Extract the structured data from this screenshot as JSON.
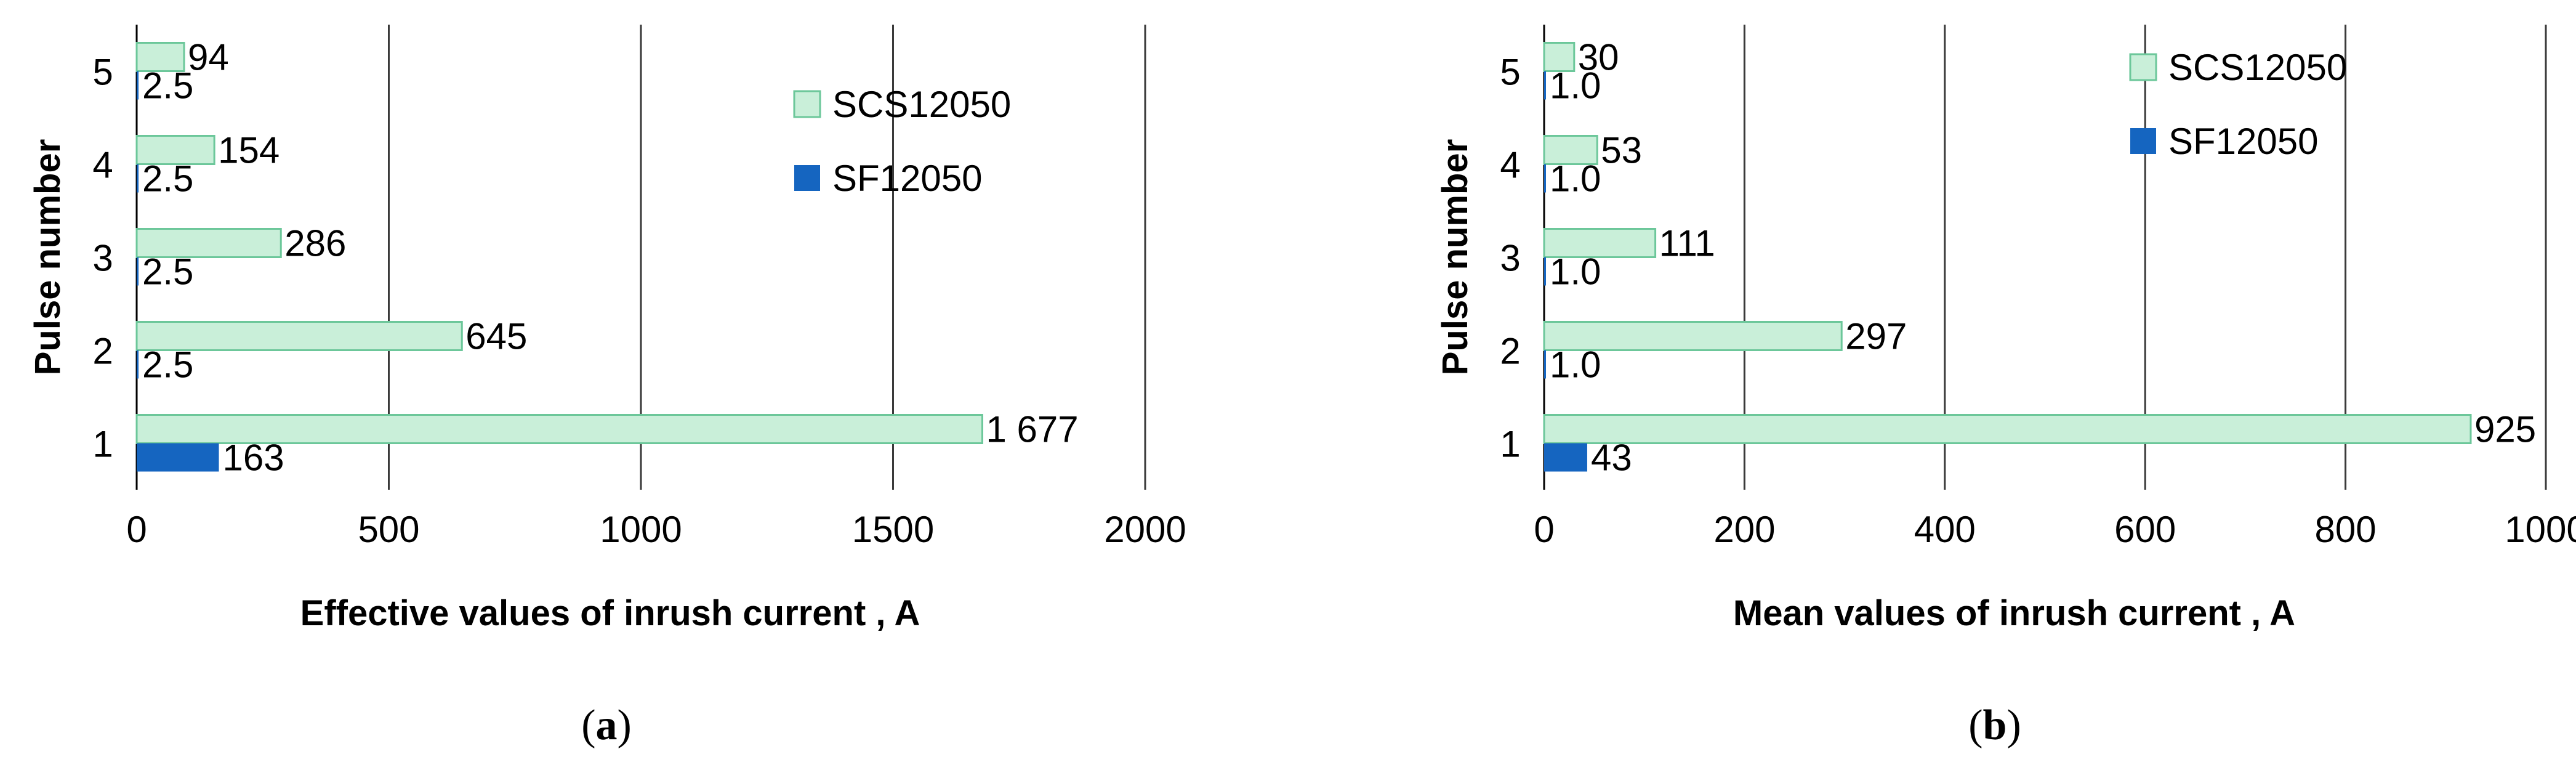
{
  "chart_data": [
    {
      "type": "bar",
      "orientation": "horizontal",
      "panel_label": "a",
      "categories": [
        "1",
        "2",
        "3",
        "4",
        "5"
      ],
      "series": [
        {
          "name": "SCS12050",
          "color": "#c9efd9",
          "edge": "#6cc79a",
          "values": [
            1677,
            645,
            286,
            154,
            94
          ],
          "labels": [
            "1 677",
            "645",
            "286",
            "154",
            "94"
          ]
        },
        {
          "name": "SF12050",
          "color": "#1565c0",
          "edge": "#1565c0",
          "values": [
            163,
            2.5,
            2.5,
            2.5,
            2.5
          ],
          "labels": [
            "163",
            "2.5",
            "2.5",
            "2.5",
            "2.5"
          ]
        }
      ],
      "xlabel": "Effective values of inrush current , A",
      "ylabel": "Pulse number",
      "xlim": [
        0,
        2000
      ],
      "xticks": [
        "0",
        "500",
        "1000",
        "1500",
        "2000"
      ],
      "grid": "vertical",
      "legend": "top-right"
    },
    {
      "type": "bar",
      "orientation": "horizontal",
      "panel_label": "b",
      "categories": [
        "1",
        "2",
        "3",
        "4",
        "5"
      ],
      "series": [
        {
          "name": "SCS12050",
          "color": "#c9efd9",
          "edge": "#6cc79a",
          "values": [
            925,
            297,
            111,
            53,
            30
          ],
          "labels": [
            "925",
            "297",
            "111",
            "53",
            "30"
          ]
        },
        {
          "name": "SF12050",
          "color": "#1565c0",
          "edge": "#1565c0",
          "values": [
            43,
            1.0,
            1.0,
            1.0,
            1.0
          ],
          "labels": [
            "43",
            "1.0",
            "1.0",
            "1.0",
            "1.0"
          ]
        }
      ],
      "xlabel": "Mean values of inrush current , A",
      "ylabel": "Pulse number",
      "xlim": [
        0,
        1000
      ],
      "xticks": [
        "0",
        "200",
        "400",
        "600",
        "800",
        "1000"
      ],
      "grid": "vertical",
      "legend": "top-right"
    }
  ]
}
